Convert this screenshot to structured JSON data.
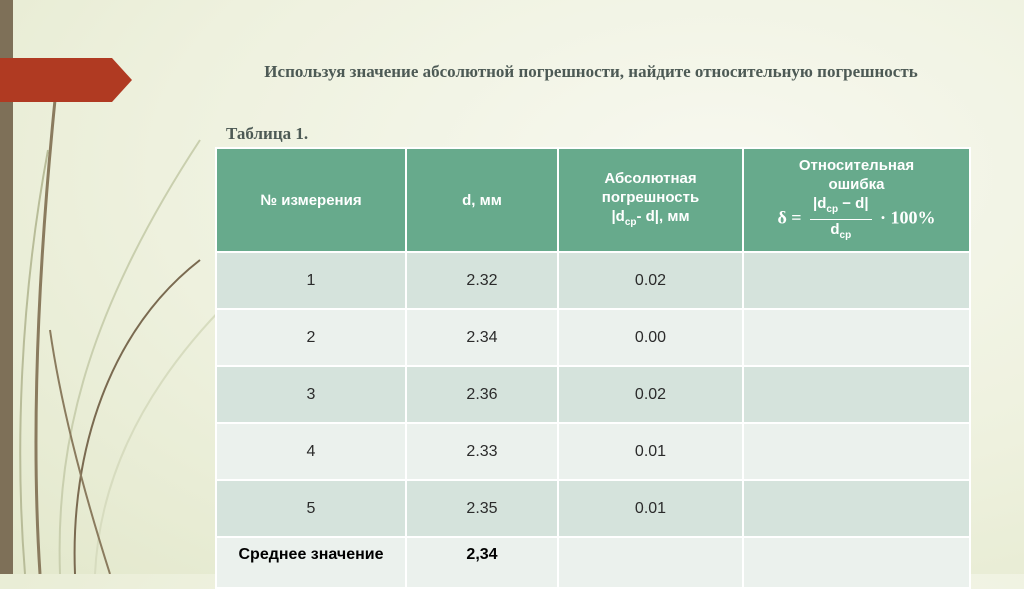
{
  "slide": {
    "title": "Используя значение абсолютной погрешности, найдите относительную погрешность",
    "caption": "Таблица 1."
  },
  "table": {
    "headers": {
      "col1": "№ измерения",
      "col2": "d, мм",
      "col3_line1": "Абсолютная",
      "col3_line2": "погрешность",
      "col3_line3_pre": "|d",
      "col3_line3_sub": "ср",
      "col3_line3_post": "- d|, мм",
      "col4_line1": "Относительная",
      "col4_line2": "ошибка",
      "formula_lhs": "δ =",
      "formula_num_pre": "|d",
      "formula_num_sub": "ср",
      "formula_num_post": " − d|",
      "formula_den_pre": "d",
      "formula_den_sub": "ср",
      "formula_rhs": "· 100%"
    },
    "rows": [
      {
        "n": "1",
        "d": "2.32",
        "abs": "0.02",
        "rel": ""
      },
      {
        "n": "2",
        "d": "2.34",
        "abs": "0.00",
        "rel": ""
      },
      {
        "n": "3",
        "d": "2.36",
        "abs": "0.02",
        "rel": ""
      },
      {
        "n": "4",
        "d": "2.33",
        "abs": "0.01",
        "rel": ""
      },
      {
        "n": "5",
        "d": "2.35",
        "abs": "0.01",
        "rel": ""
      }
    ],
    "summary": {
      "label": "Среднее значение",
      "d": "2,34",
      "abs": "",
      "rel": ""
    }
  },
  "colors": {
    "header_bg": "#67aa8c",
    "row_odd": "#d5e3dc",
    "row_even": "#ebf1ed",
    "accent_red": "#b03a22",
    "left_bar": "#7e7058"
  }
}
